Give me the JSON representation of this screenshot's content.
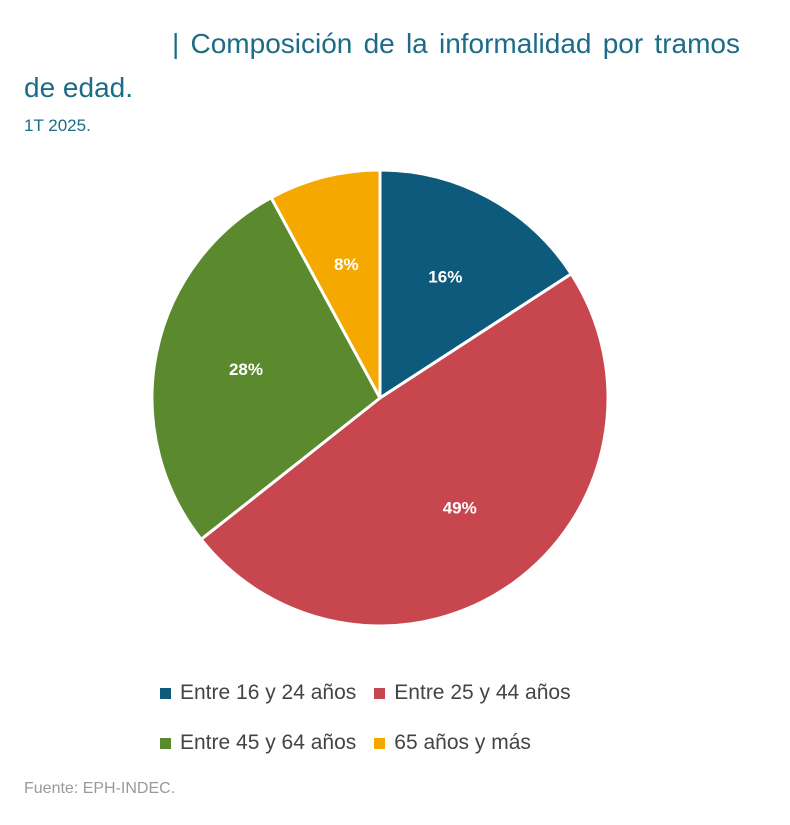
{
  "title": "| Composición de la informalidad por tramos de edad.",
  "subtitle": "1T 2025.",
  "source": "Fuente: EPH-INDEC.",
  "chart_data": {
    "type": "pie",
    "title": "| Composición de la informalidad por tramos de edad.",
    "subtitle": "1T 2025.",
    "categories": [
      "Entre 16 y 24 años",
      "Entre 25 y 44 años",
      "Entre 45 y 64 años",
      "65 años y más"
    ],
    "values": [
      16,
      49,
      28,
      8
    ],
    "labels": [
      "16%",
      "49%",
      "28%",
      "8%"
    ],
    "colors": [
      "#0e5a7c",
      "#c8464d",
      "#5b8a2e",
      "#f5a800"
    ],
    "legend_position": "bottom"
  }
}
